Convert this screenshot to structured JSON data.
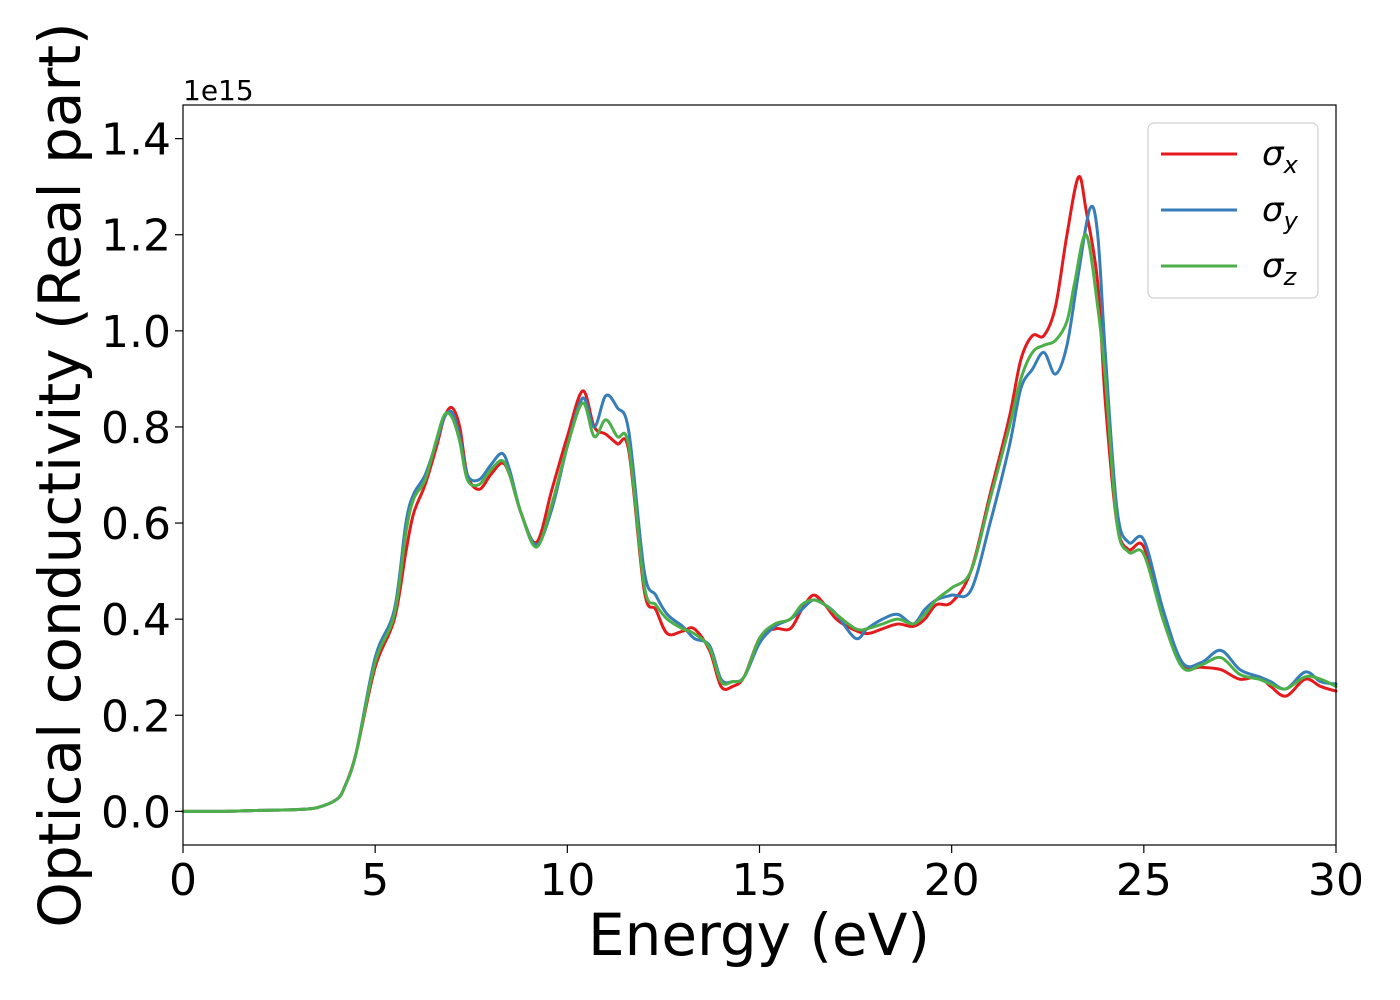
{
  "chart_data": {
    "type": "line",
    "xlabel": "Energy (eV)",
    "ylabel": "Optical conductivity (Real part)",
    "y_offset_text": "1e15",
    "xlim": [
      0,
      30
    ],
    "ylim": [
      -0.07,
      1.47
    ],
    "x_ticks": [
      0,
      5,
      10,
      15,
      20,
      25,
      30
    ],
    "y_ticks": [
      0.0,
      0.2,
      0.4,
      0.6,
      0.8,
      1.0,
      1.2,
      1.4
    ],
    "y_tick_labels": [
      "0.0",
      "0.2",
      "0.4",
      "0.6",
      "0.8",
      "1.0",
      "1.2",
      "1.4"
    ],
    "grid": false,
    "legend_position": "top-right",
    "series": [
      {
        "name": "σx",
        "name_base": "σ",
        "name_sub": "x",
        "color": "#e41a1c",
        "x": [
          0,
          1,
          2,
          3,
          3.5,
          4.0,
          4.2,
          4.5,
          5.0,
          5.5,
          5.8,
          6.0,
          6.3,
          6.6,
          6.8,
          7.0,
          7.2,
          7.4,
          7.7,
          8.0,
          8.3,
          8.5,
          8.8,
          9.2,
          9.6,
          10.0,
          10.4,
          10.7,
          11.0,
          11.3,
          11.6,
          12.0,
          12.3,
          12.6,
          13.0,
          13.3,
          13.7,
          14.0,
          14.3,
          14.6,
          15.0,
          15.4,
          15.8,
          16.1,
          16.4,
          16.7,
          17.0,
          17.4,
          17.8,
          18.2,
          18.6,
          19.0,
          19.3,
          19.6,
          20.0,
          20.5,
          21.0,
          21.5,
          21.8,
          22.1,
          22.4,
          22.7,
          23.0,
          23.3,
          23.5,
          23.8,
          24.0,
          24.3,
          24.6,
          25.0,
          25.5,
          26.0,
          26.5,
          27.0,
          27.5,
          28.0,
          28.3,
          28.7,
          29.2,
          29.6,
          30.0
        ],
        "y": [
          0,
          0,
          0.002,
          0.004,
          0.008,
          0.025,
          0.05,
          0.12,
          0.3,
          0.4,
          0.54,
          0.62,
          0.68,
          0.76,
          0.82,
          0.84,
          0.8,
          0.7,
          0.67,
          0.7,
          0.725,
          0.7,
          0.62,
          0.56,
          0.67,
          0.78,
          0.875,
          0.8,
          0.785,
          0.765,
          0.75,
          0.46,
          0.42,
          0.37,
          0.375,
          0.38,
          0.335,
          0.26,
          0.26,
          0.28,
          0.36,
          0.38,
          0.38,
          0.42,
          0.45,
          0.43,
          0.4,
          0.38,
          0.37,
          0.38,
          0.39,
          0.385,
          0.4,
          0.43,
          0.435,
          0.5,
          0.66,
          0.82,
          0.94,
          0.99,
          0.99,
          1.05,
          1.2,
          1.32,
          1.25,
          1.1,
          0.85,
          0.6,
          0.545,
          0.55,
          0.4,
          0.305,
          0.3,
          0.295,
          0.275,
          0.28,
          0.26,
          0.24,
          0.275,
          0.26,
          0.25
        ]
      },
      {
        "name": "σy",
        "name_base": "σ",
        "name_sub": "y",
        "color": "#377eb8",
        "x": [
          0,
          1,
          2,
          3,
          3.5,
          4.0,
          4.2,
          4.5,
          5.0,
          5.5,
          5.8,
          6.0,
          6.3,
          6.6,
          6.8,
          7.0,
          7.2,
          7.4,
          7.7,
          8.0,
          8.3,
          8.5,
          8.8,
          9.2,
          9.6,
          10.0,
          10.4,
          10.7,
          11.0,
          11.3,
          11.6,
          12.0,
          12.3,
          12.6,
          13.0,
          13.3,
          13.7,
          14.0,
          14.3,
          14.6,
          15.0,
          15.4,
          15.8,
          16.1,
          16.4,
          16.7,
          17.0,
          17.5,
          17.8,
          18.2,
          18.6,
          19.0,
          19.3,
          19.6,
          20.0,
          20.5,
          21.0,
          21.5,
          21.8,
          22.1,
          22.4,
          22.7,
          23.0,
          23.3,
          23.6,
          23.8,
          24.0,
          24.3,
          24.6,
          25.0,
          25.5,
          26.0,
          26.5,
          27.0,
          27.5,
          28.0,
          28.3,
          28.7,
          29.2,
          29.6,
          30.0
        ],
        "y": [
          0,
          0,
          0.002,
          0.004,
          0.008,
          0.025,
          0.05,
          0.12,
          0.32,
          0.42,
          0.6,
          0.66,
          0.7,
          0.77,
          0.82,
          0.83,
          0.78,
          0.7,
          0.69,
          0.72,
          0.745,
          0.71,
          0.62,
          0.555,
          0.63,
          0.76,
          0.86,
          0.8,
          0.865,
          0.84,
          0.79,
          0.5,
          0.45,
          0.41,
          0.385,
          0.36,
          0.345,
          0.275,
          0.27,
          0.28,
          0.35,
          0.385,
          0.4,
          0.42,
          0.44,
          0.43,
          0.41,
          0.36,
          0.38,
          0.4,
          0.41,
          0.39,
          0.42,
          0.44,
          0.45,
          0.46,
          0.6,
          0.76,
          0.88,
          0.92,
          0.955,
          0.91,
          0.97,
          1.12,
          1.255,
          1.2,
          0.95,
          0.63,
          0.56,
          0.565,
          0.42,
          0.31,
          0.31,
          0.335,
          0.295,
          0.28,
          0.27,
          0.255,
          0.29,
          0.27,
          0.265
        ]
      },
      {
        "name": "σz",
        "name_base": "σ",
        "name_sub": "z",
        "color": "#4daf4a",
        "x": [
          0,
          1,
          2,
          3,
          3.5,
          4.0,
          4.2,
          4.5,
          5.0,
          5.5,
          5.8,
          6.0,
          6.3,
          6.6,
          6.8,
          7.0,
          7.2,
          7.4,
          7.7,
          8.0,
          8.3,
          8.5,
          8.8,
          9.2,
          9.6,
          10.0,
          10.4,
          10.7,
          11.0,
          11.3,
          11.6,
          12.0,
          12.3,
          12.6,
          13.0,
          13.3,
          13.7,
          14.0,
          14.3,
          14.6,
          15.0,
          15.4,
          15.8,
          16.1,
          16.4,
          16.7,
          17.0,
          17.5,
          17.8,
          18.2,
          18.6,
          19.0,
          19.3,
          19.6,
          20.0,
          20.5,
          21.0,
          21.5,
          21.8,
          22.1,
          22.4,
          22.7,
          23.0,
          23.2,
          23.5,
          23.8,
          24.0,
          24.3,
          24.6,
          25.0,
          25.5,
          26.0,
          26.5,
          27.0,
          27.5,
          28.0,
          28.3,
          28.7,
          29.2,
          29.6,
          30.0
        ],
        "y": [
          0,
          0,
          0.002,
          0.004,
          0.008,
          0.025,
          0.05,
          0.12,
          0.31,
          0.41,
          0.58,
          0.65,
          0.69,
          0.775,
          0.825,
          0.82,
          0.77,
          0.69,
          0.68,
          0.71,
          0.73,
          0.7,
          0.62,
          0.55,
          0.64,
          0.76,
          0.85,
          0.78,
          0.815,
          0.78,
          0.76,
          0.47,
          0.43,
          0.4,
          0.38,
          0.37,
          0.34,
          0.27,
          0.27,
          0.28,
          0.36,
          0.39,
          0.4,
          0.43,
          0.44,
          0.43,
          0.41,
          0.38,
          0.38,
          0.39,
          0.4,
          0.39,
          0.41,
          0.44,
          0.465,
          0.5,
          0.65,
          0.8,
          0.9,
          0.955,
          0.97,
          0.98,
          1.02,
          1.1,
          1.2,
          1.05,
          0.9,
          0.6,
          0.54,
          0.535,
          0.4,
          0.3,
          0.305,
          0.32,
          0.285,
          0.275,
          0.265,
          0.255,
          0.28,
          0.275,
          0.26
        ]
      }
    ]
  }
}
